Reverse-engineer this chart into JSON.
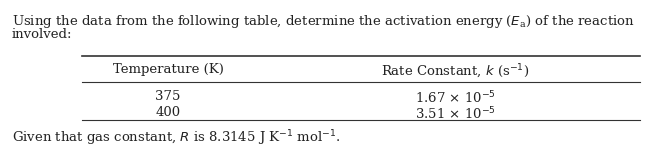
{
  "line1": "Using the data from the following table, determine the activation energy (",
  "line1_ea": "E",
  "line1_ea_sub": "a",
  "line1_end": ") of the reaction",
  "line2": "involved:",
  "col1_header": "Temperature (K)",
  "col2_header_prefix": "Rate Constant, ",
  "col2_header_k": "k",
  "col2_header_suffix": " (s⁻¹)",
  "row1_col1": "375",
  "row1_col2": "1.67 × 10⁻⁵",
  "row2_col1": "400",
  "row2_col2": "3.51 × 10⁻⁵",
  "footer": "Given that gas constant, R is 8.3145 J K⁻¹ mol⁻¹.",
  "font_size": 9.5,
  "font_family": "DejaVu Serif",
  "text_color": "#222222",
  "line_color": "#333333",
  "bg_color": "#ffffff",
  "fig_width": 6.53,
  "fig_height": 1.57,
  "dpi": 100
}
